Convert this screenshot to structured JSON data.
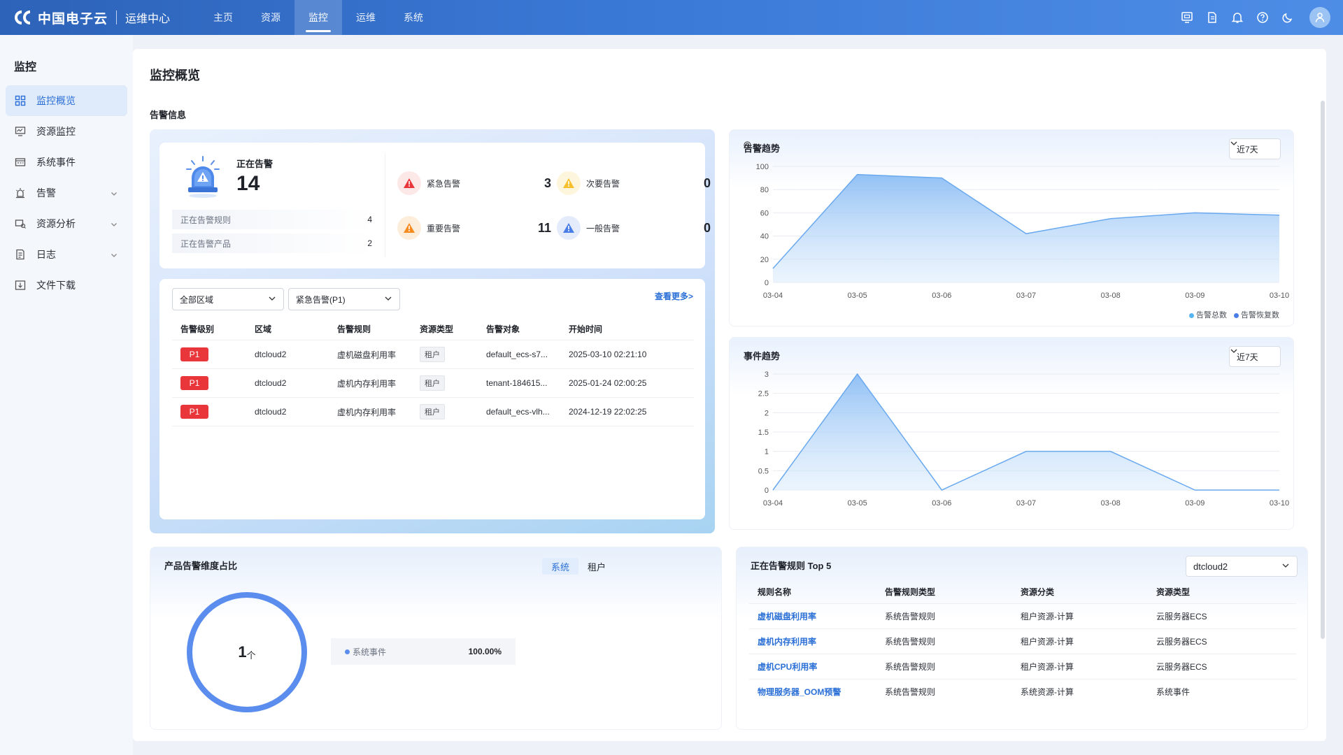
{
  "header": {
    "brand_name": "中国电子云",
    "brand_sub": "运维中心",
    "nav": [
      {
        "label": "主页",
        "active": false
      },
      {
        "label": "资源",
        "active": false
      },
      {
        "label": "监控",
        "active": true
      },
      {
        "label": "运维",
        "active": false
      },
      {
        "label": "系统",
        "active": false
      }
    ]
  },
  "sidebar": {
    "title": "监控",
    "items": [
      {
        "label": "监控概览",
        "icon": "grid-icon",
        "active": true,
        "expandable": false
      },
      {
        "label": "资源监控",
        "icon": "monitor-icon",
        "active": false,
        "expandable": false
      },
      {
        "label": "系统事件",
        "icon": "event-icon",
        "active": false,
        "expandable": false
      },
      {
        "label": "告警",
        "icon": "alarm-icon",
        "active": false,
        "expandable": true
      },
      {
        "label": "资源分析",
        "icon": "analysis-icon",
        "active": false,
        "expandable": true
      },
      {
        "label": "日志",
        "icon": "log-icon",
        "active": false,
        "expandable": true
      },
      {
        "label": "文件下载",
        "icon": "download-icon",
        "active": false,
        "expandable": false
      }
    ]
  },
  "main": {
    "page_title": "监控概览",
    "section_title": "告警信息"
  },
  "alert_summary": {
    "now_label": "正在告警",
    "now_count": "14",
    "stats": [
      {
        "label": "正在告警规则",
        "value": "4"
      },
      {
        "label": "正在告警产品",
        "value": "2"
      }
    ],
    "levels": [
      {
        "label": "紧急告警",
        "value": "3",
        "color": "#e8363a"
      },
      {
        "label": "次要告警",
        "value": "0",
        "color": "#f5c02b"
      },
      {
        "label": "重要告警",
        "value": "11",
        "color": "#f58a1f"
      },
      {
        "label": "一般告警",
        "value": "0",
        "color": "#4a7ee6"
      }
    ]
  },
  "alert_list": {
    "region_select": "全部区域",
    "level_select": "紧急告警(P1)",
    "more_link": "查看更多>",
    "columns": [
      "告警级别",
      "区域",
      "告警规则",
      "资源类型",
      "告警对象",
      "开始时间"
    ],
    "rows": [
      {
        "level": "P1",
        "region": "dtcloud2",
        "rule": "虚机磁盘利用率",
        "type": "租户",
        "target": "default_ecs-s7...",
        "time": "2025-03-10 02:21:10"
      },
      {
        "level": "P1",
        "region": "dtcloud2",
        "rule": "虚机内存利用率",
        "type": "租户",
        "target": "tenant-184615...",
        "time": "2025-01-24 02:00:25"
      },
      {
        "level": "P1",
        "region": "dtcloud2",
        "rule": "虚机内存利用率",
        "type": "租户",
        "target": "default_ecs-vlh...",
        "time": "2024-12-19 22:02:25"
      }
    ]
  },
  "alarm_trend": {
    "title": "告警趋势",
    "range_select": "近7天",
    "legend": [
      {
        "name": "告警总数",
        "color": "#56b4f0"
      },
      {
        "name": "告警恢复数",
        "color": "#4a7ee6"
      }
    ]
  },
  "event_trend": {
    "title": "事件趋势",
    "range_select": "近7天"
  },
  "chart_data": [
    {
      "type": "area",
      "title": "告警趋势",
      "x": [
        "03-04",
        "03-05",
        "03-06",
        "03-07",
        "03-08",
        "03-09",
        "03-10"
      ],
      "series": [
        {
          "name": "告警总数",
          "values": [
            12,
            93,
            90,
            42,
            55,
            60,
            58
          ]
        },
        {
          "name": "告警恢复数",
          "values": [
            12,
            93,
            90,
            42,
            55,
            60,
            58
          ]
        }
      ],
      "ylim": [
        0,
        100
      ],
      "yticks": [
        "0",
        "20",
        "40",
        "60",
        "80",
        "100"
      ],
      "grid": true,
      "legend": "bottom-right"
    },
    {
      "type": "area",
      "title": "事件趋势",
      "x": [
        "03-04",
        "03-05",
        "03-06",
        "03-07",
        "03-08",
        "03-09",
        "03-10"
      ],
      "series": [
        {
          "values": [
            0,
            3,
            0,
            1,
            1,
            0,
            0
          ]
        }
      ],
      "ylim": [
        0,
        3
      ],
      "yticks": [
        "0",
        "0.5",
        "1",
        "1.5",
        "2",
        "2.5",
        "3"
      ],
      "grid": true
    }
  ],
  "ratio": {
    "title": "产品告警维度占比",
    "tabs": [
      {
        "label": "系统",
        "active": true
      },
      {
        "label": "租户",
        "active": false
      }
    ],
    "center_value": "1",
    "center_unit": "个",
    "legend_name": "系统事件",
    "legend_pct": "100.00%",
    "fraction": 1.0,
    "color": "#5b8def"
  },
  "top_rules": {
    "title": "正在告警规则 Top 5",
    "region_select": "dtcloud2",
    "columns": [
      "规则名称",
      "告警规则类型",
      "资源分类",
      "资源类型"
    ],
    "rows": [
      {
        "name": "虚机磁盘利用率",
        "rule_type": "系统告警规则",
        "category": "租户资源-计算",
        "res_type": "云服务器ECS"
      },
      {
        "name": "虚机内存利用率",
        "rule_type": "系统告警规则",
        "category": "租户资源-计算",
        "res_type": "云服务器ECS"
      },
      {
        "name": "虚机CPU利用率",
        "rule_type": "系统告警规则",
        "category": "租户资源-计算",
        "res_type": "云服务器ECS"
      },
      {
        "name": "物理服务器_OOM预警",
        "rule_type": "系统告警规则",
        "category": "系统资源-计算",
        "res_type": "系统事件"
      }
    ]
  }
}
